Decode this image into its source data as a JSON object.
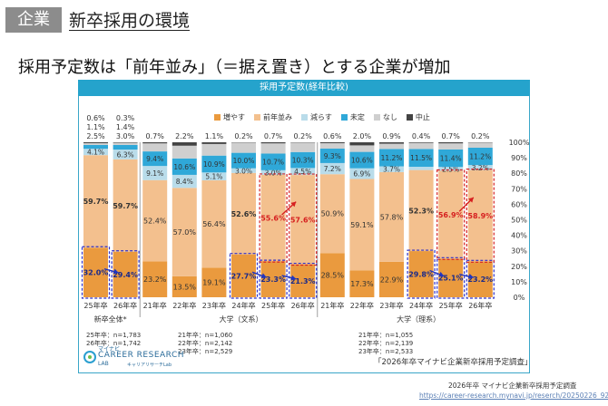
{
  "header": {
    "badge": "企業",
    "title": "新卒採用の環境"
  },
  "subtitle": "採用予定数は「前年並み」（＝据え置き）とする企業が増加",
  "colors": {
    "increase": "#ea9a3e",
    "same": "#f3c08e",
    "decrease": "#b9dcea",
    "undecided": "#2fa8d8",
    "none": "#cfcfcf",
    "stop": "#444444",
    "accent": "#25a3cc"
  },
  "chart_data": {
    "type": "stacked_bar",
    "title": "採用予定数(経年比較)",
    "legend": [
      "増やす",
      "前年並み",
      "減らす",
      "未定",
      "なし",
      "中止"
    ],
    "yticks": [
      "100%",
      "90%",
      "80%",
      "70%",
      "60%",
      "50%",
      "40%",
      "30%",
      "20%",
      "10%",
      "0%"
    ],
    "ylim": [
      0,
      100
    ],
    "bars": [
      {
        "label": "25年卒",
        "group": "新卒全体",
        "values": [
          32.0,
          59.7,
          4.1,
          2.5,
          1.1,
          0.6
        ],
        "top_labels": [
          "0.6%",
          "1.1%",
          "2.5%"
        ],
        "highlight": [
          true,
          false
        ]
      },
      {
        "label": "26年卒",
        "group": "新卒全体",
        "values": [
          29.4,
          59.7,
          6.3,
          3.0,
          1.4,
          0.3
        ],
        "top_labels": [
          "0.3%",
          "1.4%",
          "3.0%"
        ],
        "highlight": [
          true,
          false
        ]
      },
      {
        "label": "21年卒",
        "group": "大学(文系)",
        "values": [
          23.2,
          52.4,
          9.1,
          9.4,
          5.2,
          0.7
        ],
        "top_labels": [
          "0.7%"
        ],
        "highlight": [
          false,
          false
        ]
      },
      {
        "label": "22年卒",
        "group": "大学(文系)",
        "values": [
          13.5,
          57.0,
          8.4,
          10.6,
          8.2,
          2.2
        ],
        "top_labels": [
          "2.2%"
        ],
        "highlight": [
          false,
          false
        ]
      },
      {
        "label": "23年卒",
        "group": "大学(文系)",
        "values": [
          19.1,
          56.4,
          5.1,
          10.9,
          7.5,
          1.1
        ],
        "top_labels": [
          "1.1%"
        ],
        "highlight": [
          false,
          false
        ]
      },
      {
        "label": "24年卒",
        "group": "大学(文系)",
        "values": [
          27.7,
          52.6,
          3.0,
          10.0,
          6.6,
          0.2
        ],
        "top_labels": [
          "0.2%"
        ],
        "highlight": [
          true,
          false
        ]
      },
      {
        "label": "25年卒",
        "group": "大学(文系)",
        "values": [
          23.3,
          55.6,
          3.0,
          10.7,
          6.6,
          0.7
        ],
        "top_labels": [
          "0.7%"
        ],
        "highlight": [
          true,
          true
        ]
      },
      {
        "label": "26年卒",
        "group": "大学(文系)",
        "values": [
          21.3,
          57.6,
          4.5,
          10.3,
          6.1,
          0.2
        ],
        "top_labels": [
          "0.2%"
        ],
        "highlight": [
          true,
          true
        ]
      },
      {
        "label": "21年卒",
        "group": "大学(理系)",
        "values": [
          28.5,
          50.9,
          7.2,
          9.3,
          3.5,
          0.6
        ],
        "top_labels": [
          "0.6%"
        ],
        "highlight": [
          false,
          false
        ]
      },
      {
        "label": "22年卒",
        "group": "大学(理系)",
        "values": [
          17.3,
          59.1,
          6.9,
          10.6,
          4.2,
          2.0
        ],
        "top_labels": [
          "2.0%"
        ],
        "highlight": [
          false,
          false
        ]
      },
      {
        "label": "23年卒",
        "group": "大学(理系)",
        "values": [
          22.9,
          57.8,
          3.7,
          11.2,
          3.4,
          0.9
        ],
        "top_labels": [
          "0.9%"
        ],
        "highlight": [
          false,
          false
        ]
      },
      {
        "label": "24年卒",
        "group": "大学(理系)",
        "values": [
          29.8,
          52.3,
          2.1,
          11.5,
          3.9,
          0.4
        ],
        "top_labels": [
          "0.4%"
        ],
        "highlight": [
          true,
          false
        ]
      },
      {
        "label": "25年卒",
        "group": "大学(理系)",
        "values": [
          25.1,
          56.9,
          2.5,
          11.4,
          3.9,
          0.7
        ],
        "top_labels": [
          "0.7%"
        ],
        "highlight": [
          true,
          true
        ]
      },
      {
        "label": "26年卒",
        "group": "大学(理系)",
        "values": [
          23.2,
          58.9,
          3.2,
          11.2,
          3.3,
          0.2
        ],
        "top_labels": [
          "0.2%"
        ],
        "highlight": [
          true,
          true
        ]
      }
    ],
    "group_labels": [
      "新卒全体*",
      "大学（文系）",
      "大学（理系）"
    ],
    "sample_sizes": [
      [
        "25年卒：n=1,783",
        "26年卒：n=1,742"
      ],
      [
        "21年卒：n=1,060",
        "22年卒：n=2,142",
        "23年卒：n=2,529"
      ],
      [
        "21年卒：n=1,055",
        "22年卒：n=2,139",
        "23年卒：n=2,533"
      ]
    ]
  },
  "survey_name": "「2026年卒マイナビ企業新卒採用予定調査」",
  "logo": {
    "top": "マイナビ",
    "main": "CAREER RESEARCH",
    "sub": "LAB",
    "sub2": "キャリアリサーチLab"
  },
  "footnote": {
    "source": "2026年卒 マイナビ企業新卒採用予定調査",
    "url": "https://career-research.mynavi.jp/reserch/20250226_92878/"
  }
}
